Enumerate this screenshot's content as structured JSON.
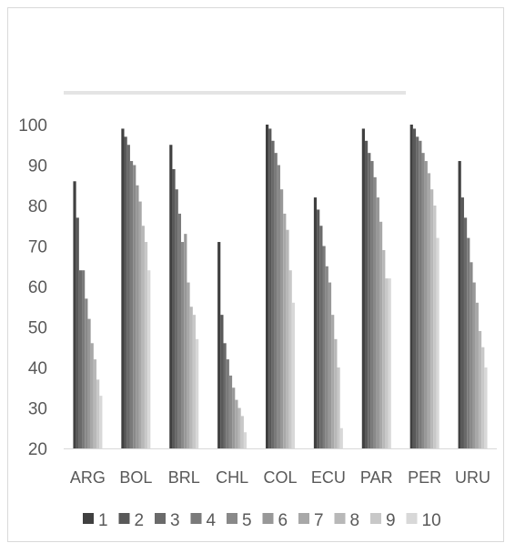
{
  "chart_data": {
    "type": "bar",
    "title": "",
    "xlabel": "",
    "ylabel": "",
    "ylim": [
      20,
      100
    ],
    "yticks": [
      20,
      30,
      40,
      50,
      60,
      70,
      80,
      90,
      100
    ],
    "grid": false,
    "legend_position": "bottom",
    "categories": [
      "ARG",
      "BOL",
      "BRL",
      "CHL",
      "COL",
      "ECU",
      "PAR",
      "PER",
      "URU"
    ],
    "series": [
      {
        "name": "1",
        "color": "#404040",
        "values": [
          86,
          99,
          95,
          71,
          100,
          82,
          99,
          100,
          91
        ]
      },
      {
        "name": "2",
        "color": "#595959",
        "values": [
          77,
          97,
          89,
          53,
          99,
          79,
          96,
          99,
          82
        ]
      },
      {
        "name": "3",
        "color": "#6a6a6a",
        "values": [
          64,
          95,
          84,
          46,
          96,
          75,
          93,
          97,
          77
        ]
      },
      {
        "name": "4",
        "color": "#7a7a7a",
        "values": [
          64,
          91,
          78,
          42,
          93,
          70,
          91,
          96,
          72
        ]
      },
      {
        "name": "5",
        "color": "#898989",
        "values": [
          57,
          90,
          71,
          38,
          90,
          65,
          87,
          93,
          66
        ]
      },
      {
        "name": "6",
        "color": "#989898",
        "values": [
          52,
          85,
          73,
          35,
          84,
          61,
          82,
          91,
          61
        ]
      },
      {
        "name": "7",
        "color": "#a8a8a8",
        "values": [
          46,
          81,
          61,
          32,
          78,
          53,
          76,
          88,
          56
        ]
      },
      {
        "name": "8",
        "color": "#b8b8b8",
        "values": [
          42,
          75,
          55,
          30,
          74,
          47,
          69,
          84,
          49
        ]
      },
      {
        "name": "9",
        "color": "#c8c8c8",
        "values": [
          37,
          71,
          53,
          28,
          64,
          40,
          62,
          80,
          45
        ]
      },
      {
        "name": "10",
        "color": "#d8d8d8",
        "values": [
          33,
          64,
          47,
          24,
          56,
          25,
          62,
          72,
          40
        ]
      }
    ]
  }
}
